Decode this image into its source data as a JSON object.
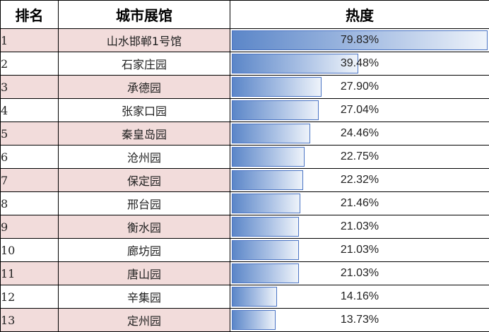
{
  "table": {
    "headers": {
      "rank": "排名",
      "name": "城市展馆",
      "heat": "热度"
    },
    "max_heat": 79.83,
    "bar_color": "#5b86c8",
    "alt_row_color": "#f2dcdb",
    "rows": [
      {
        "rank": "1",
        "name": "山水邯郸1号馆",
        "heat": "79.83%",
        "value": 79.83
      },
      {
        "rank": "2",
        "name": "石家庄园",
        "heat": "39.48%",
        "value": 39.48
      },
      {
        "rank": "3",
        "name": "承德园",
        "heat": "27.90%",
        "value": 27.9
      },
      {
        "rank": "4",
        "name": "张家口园",
        "heat": "27.04%",
        "value": 27.04
      },
      {
        "rank": "5",
        "name": "秦皇岛园",
        "heat": "24.46%",
        "value": 24.46
      },
      {
        "rank": "6",
        "name": "沧州园",
        "heat": "22.75%",
        "value": 22.75
      },
      {
        "rank": "7",
        "name": "保定园",
        "heat": "22.32%",
        "value": 22.32
      },
      {
        "rank": "8",
        "name": "邢台园",
        "heat": "21.46%",
        "value": 21.46
      },
      {
        "rank": "9",
        "name": "衡水园",
        "heat": "21.03%",
        "value": 21.03
      },
      {
        "rank": "10",
        "name": "廊坊园",
        "heat": "21.03%",
        "value": 21.03
      },
      {
        "rank": "11",
        "name": "唐山园",
        "heat": "21.03%",
        "value": 21.03
      },
      {
        "rank": "12",
        "name": "辛集园",
        "heat": "14.16%",
        "value": 14.16
      },
      {
        "rank": "13",
        "name": "定州园",
        "heat": "13.73%",
        "value": 13.73
      }
    ]
  }
}
